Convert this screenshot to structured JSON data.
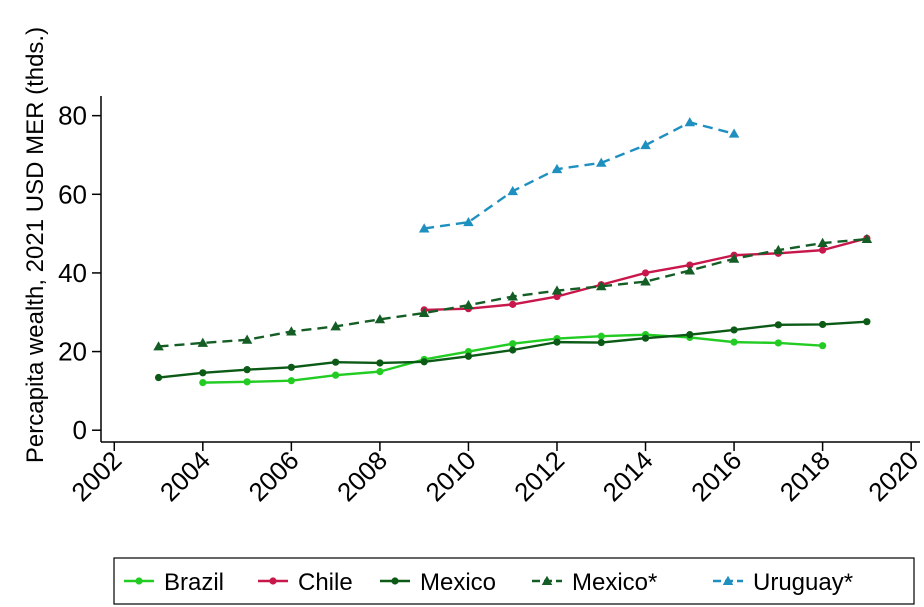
{
  "chart_data": {
    "type": "line",
    "title": "",
    "xlabel": "",
    "ylabel": "Percapita wealth, 2021 USD MER (thds.)",
    "xlim": [
      2001.7,
      2020.2
    ],
    "ylim": [
      -3,
      85
    ],
    "x_ticks": [
      2002,
      2004,
      2006,
      2008,
      2010,
      2012,
      2014,
      2016,
      2018,
      2020
    ],
    "y_ticks": [
      0,
      20,
      40,
      60,
      80
    ],
    "grid": false,
    "legend_position": "bottom",
    "series": [
      {
        "name": "Brazil",
        "color": "#22cc22",
        "dash": "solid",
        "marker": "circle",
        "x": [
          2004,
          2005,
          2006,
          2007,
          2008,
          2009,
          2010,
          2011,
          2012,
          2013,
          2014,
          2015,
          2016,
          2017,
          2018
        ],
        "y": [
          12.1,
          12.3,
          12.6,
          14.0,
          14.9,
          18.0,
          20.0,
          22.0,
          23.3,
          23.9,
          24.3,
          23.6,
          22.4,
          22.2,
          21.5
        ]
      },
      {
        "name": "Chile",
        "color": "#c8174b",
        "dash": "solid",
        "marker": "circle",
        "x": [
          2009,
          2010,
          2011,
          2012,
          2013,
          2014,
          2015,
          2016,
          2017,
          2018,
          2019
        ],
        "y": [
          30.6,
          30.9,
          32.0,
          34.0,
          37.0,
          40.0,
          42.0,
          44.5,
          45.0,
          45.8,
          48.8
        ]
      },
      {
        "name": "Mexico",
        "color": "#0b5a16",
        "dash": "solid",
        "marker": "circle",
        "x": [
          2003,
          2004,
          2005,
          2006,
          2007,
          2008,
          2009,
          2010,
          2011,
          2012,
          2013,
          2014,
          2015,
          2016,
          2017,
          2018,
          2019
        ],
        "y": [
          13.4,
          14.6,
          15.4,
          16.0,
          17.3,
          17.1,
          17.4,
          18.8,
          20.4,
          22.4,
          22.3,
          23.4,
          24.3,
          25.5,
          26.8,
          26.9,
          27.6
        ]
      },
      {
        "name": "Mexico*",
        "color": "#145e26",
        "dash": "dashed",
        "marker": "triangle",
        "x": [
          2003,
          2004,
          2005,
          2006,
          2007,
          2008,
          2009,
          2010,
          2011,
          2012,
          2013,
          2014,
          2015,
          2016,
          2017,
          2018,
          2019
        ],
        "y": [
          21.3,
          22.2,
          23.0,
          25.1,
          26.4,
          28.2,
          29.8,
          31.8,
          34.0,
          35.5,
          36.6,
          37.8,
          40.6,
          43.6,
          45.8,
          47.6,
          48.6
        ]
      },
      {
        "name": "Uruguay*",
        "color": "#1e90c0",
        "dash": "dashed",
        "marker": "triangle",
        "x": [
          2009,
          2010,
          2011,
          2012,
          2013,
          2014,
          2015,
          2016
        ],
        "y": [
          51.3,
          52.9,
          60.8,
          66.4,
          68.0,
          72.5,
          78.3,
          75.4
        ]
      }
    ]
  }
}
